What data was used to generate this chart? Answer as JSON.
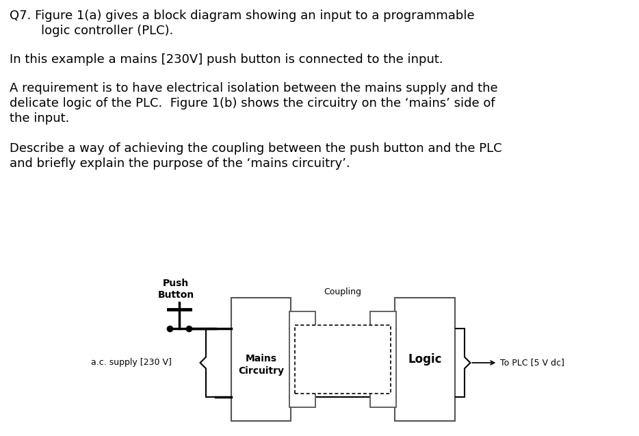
{
  "background_color": "#ffffff",
  "text_color": "#000000",
  "paragraph1_line1": "Q7. Figure 1(a) gives a block diagram showing an input to a programmable",
  "paragraph1_line2": "        logic controller (PLC).",
  "paragraph2": "In this example a mains [230V] push button is connected to the input.",
  "paragraph3_line1": "A requirement is to have electrical isolation between the mains supply and the",
  "paragraph3_line2": "delicate logic of the PLC.  Figure 1(b) shows the circuitry on the ‘mains’ side of",
  "paragraph3_line3": "the input.",
  "paragraph4_line1": "Describe a way of achieving the coupling between the push button and the PLC",
  "paragraph4_line2": "and briefly explain the purpose of the ‘mains circuitry’.",
  "label_push_button": "Push\nButton",
  "label_mains_circuitry": "Mains\nCircuitry",
  "label_coupling": "Coupling",
  "label_logic": "Logic",
  "label_ac_supply": "a.c. supply [230 V]",
  "label_to_plc": "To PLC [5 V dc]",
  "font_size_body": 13,
  "font_size_diagram": 9,
  "font_size_diagram_bold": 10
}
